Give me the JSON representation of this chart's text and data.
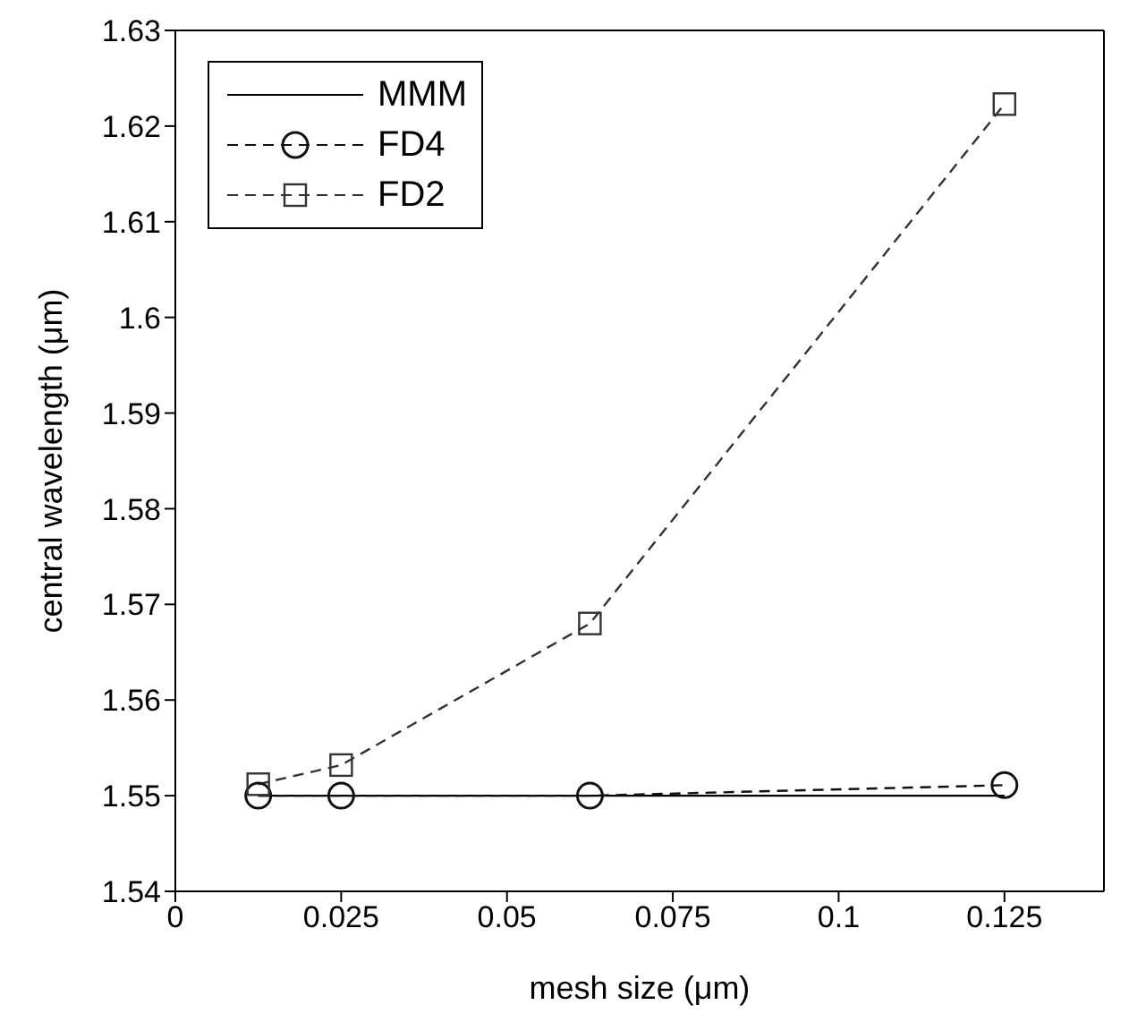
{
  "chart_data": {
    "type": "line",
    "xlabel": "mesh size (μm)",
    "ylabel": "central wavelength (μm)",
    "xlim": [
      0,
      0.14
    ],
    "xticks": [
      0,
      0.025,
      0.05,
      0.075,
      0.1,
      0.125
    ],
    "ylim": [
      1.54,
      1.63
    ],
    "yticks": [
      1.54,
      1.55,
      1.56,
      1.57,
      1.58,
      1.59,
      1.6,
      1.61,
      1.62,
      1.63
    ],
    "x": [
      0.0125,
      0.025,
      0.0625,
      0.125
    ],
    "series": [
      {
        "name": "MMM",
        "color": "#000000",
        "values": [
          1.55,
          1.55,
          1.55,
          1.55
        ],
        "marker": "none",
        "line_style": "solid"
      },
      {
        "name": "FD4",
        "color": "#111111",
        "values": [
          1.55,
          1.55,
          1.55,
          1.5511
        ],
        "marker": "circle",
        "line_style": "dashed"
      },
      {
        "name": "FD2",
        "color": "#333333",
        "values": [
          1.5512,
          1.5532,
          1.568,
          1.6223
        ],
        "marker": "square",
        "line_style": "dashed"
      }
    ],
    "legend": "top left",
    "grid": false
  }
}
